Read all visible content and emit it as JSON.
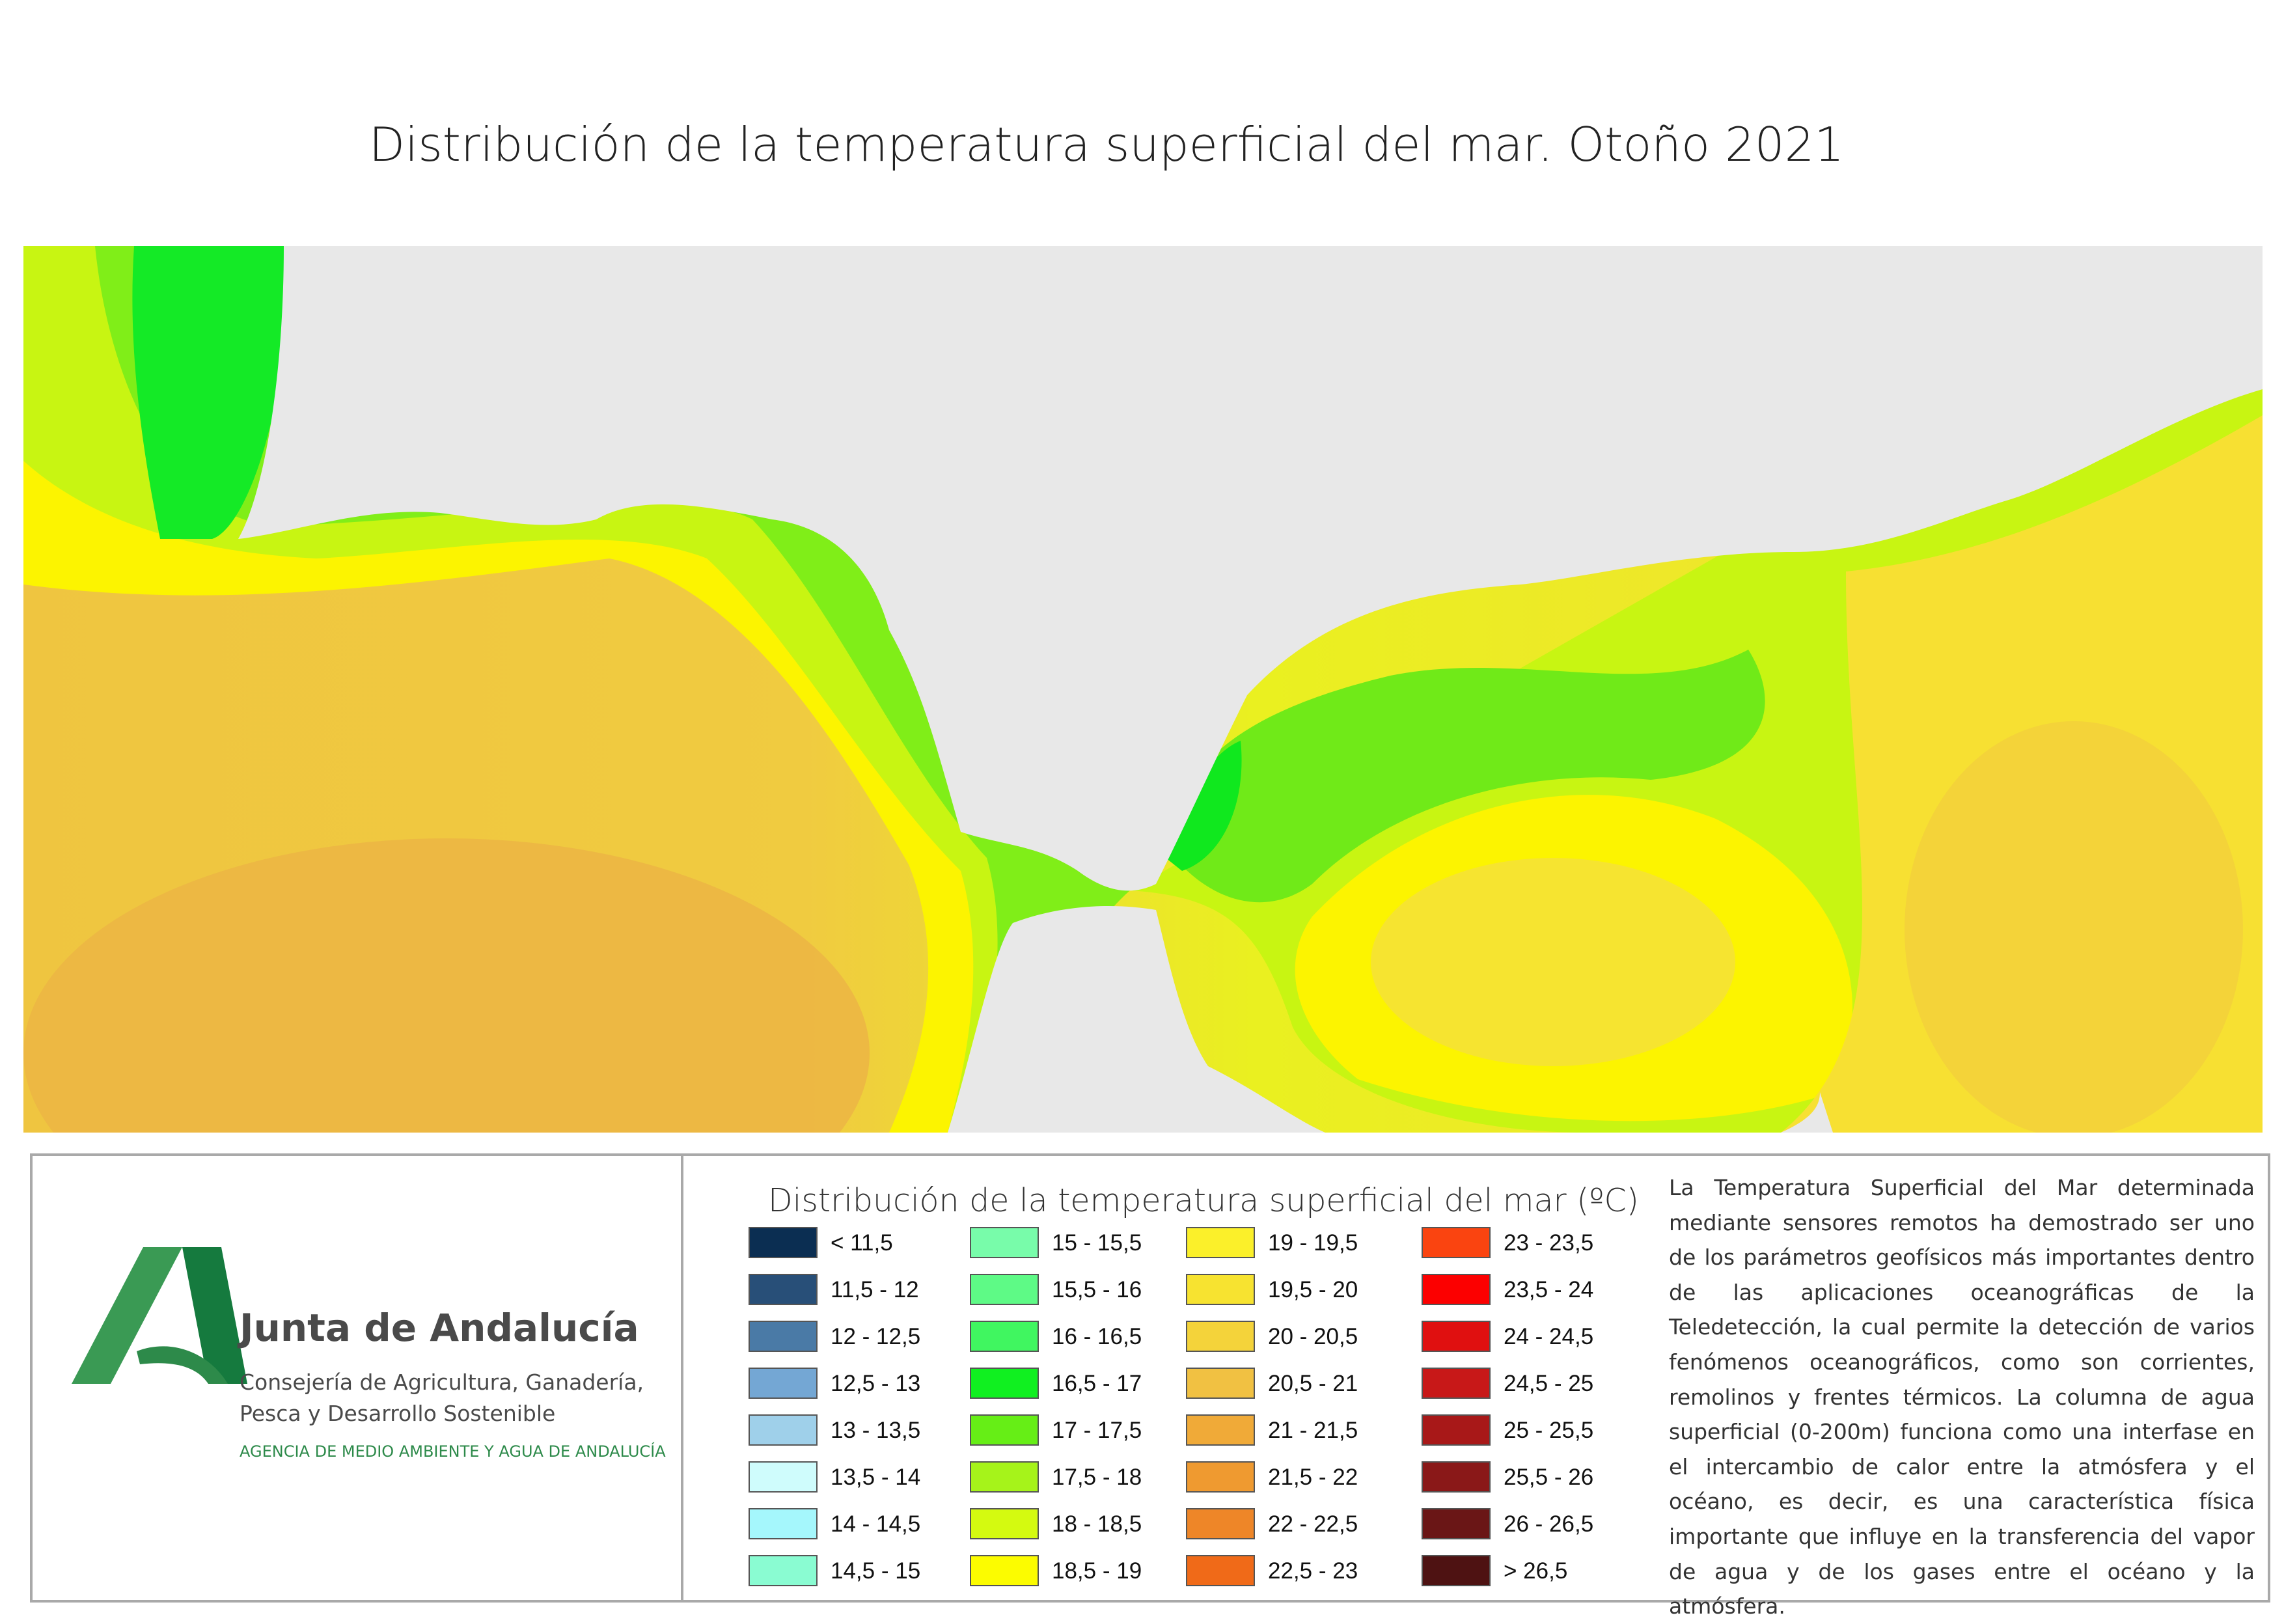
{
  "title": "Distribución de la temperatura superficial del mar. Otoño 2021",
  "colors": {
    "land": "#e8e8e8",
    "frame": "#a9a9a9"
  },
  "logo": {
    "icon": "junta-de-andalucia-logo-icon",
    "name": "Junta de Andalucía",
    "dept_line1": "Consejería de Agricultura, Ganadería,",
    "dept_line2": "Pesca y Desarrollo Sostenible",
    "agency": "AGENCIA DE MEDIO AMBIENTE Y AGUA DE ANDALUCÍA",
    "colors": {
      "light": "#3a9a54",
      "dark": "#157a3e"
    }
  },
  "legend": {
    "title": "Distribución de la temperatura superficial del mar  (ºC)",
    "items": [
      {
        "label": "< 11,5",
        "color": "#0b2e52"
      },
      {
        "label": "11,5 - 12",
        "color": "#284f78"
      },
      {
        "label": "12 - 12,5",
        "color": "#4a7aa6"
      },
      {
        "label": "12,5 - 13",
        "color": "#74a7d4"
      },
      {
        "label": "13 - 13,5",
        "color": "#9fd0ea"
      },
      {
        "label": "13,5 - 14",
        "color": "#cffcfc"
      },
      {
        "label": "14 - 14,5",
        "color": "#a5f7fc"
      },
      {
        "label": "14,5 - 15",
        "color": "#8afcd2"
      },
      {
        "label": "15 - 15,5",
        "color": "#78fcaa"
      },
      {
        "label": "15,5 - 16",
        "color": "#5efa86"
      },
      {
        "label": "16 - 16,5",
        "color": "#40f660"
      },
      {
        "label": "16,5 - 17",
        "color": "#10f020"
      },
      {
        "label": "17 - 17,5",
        "color": "#66ee16"
      },
      {
        "label": "17,5 - 18",
        "color": "#a6f31a"
      },
      {
        "label": "18 - 18,5",
        "color": "#d4fa10"
      },
      {
        "label": "18,5 - 19",
        "color": "#fcfc00"
      },
      {
        "label": "19 - 19,5",
        "color": "#fbf02a"
      },
      {
        "label": "19,5 - 20",
        "color": "#f7e330"
      },
      {
        "label": "20 - 20,5",
        "color": "#f4d33a"
      },
      {
        "label": "20,5 - 21",
        "color": "#f1c142"
      },
      {
        "label": "21 - 21,5",
        "color": "#f0aa38"
      },
      {
        "label": "21,5 - 22",
        "color": "#ef9a30"
      },
      {
        "label": "22 - 22,5",
        "color": "#ee8628"
      },
      {
        "label": "22,5 - 23",
        "color": "#f06a18"
      },
      {
        "label": "23 - 23,5",
        "color": "#fa4410"
      },
      {
        "label": "23,5 - 24",
        "color": "#fc0000"
      },
      {
        "label": "24 - 24,5",
        "color": "#e01010"
      },
      {
        "label": "24,5 - 25",
        "color": "#c81818"
      },
      {
        "label": "25 - 25,5",
        "color": "#a81818"
      },
      {
        "label": "25,5 - 26",
        "color": "#8a1818"
      },
      {
        "label": "26 - 26,5",
        "color": "#6a1616"
      },
      {
        "label": "> 26,5",
        "color": "#4e1212"
      }
    ]
  },
  "description": "La Temperatura Superficial del Mar determinada mediante sensores remotos ha demostrado ser uno de los parámetros geofísicos más importantes dentro de las aplicaciones oceanográficas de la Teledetección, la cual permite la detección de varios fenómenos oceanográficos, como son corrientes, remolinos y frentes térmicos. La columna de agua superficial (0-200m) funciona como una interfase en el intercambio de calor entre la atmósfera y el océano, es decir, es una característica física importante que influye en la transferencia del vapor de agua y de los gases entre el océano y la atmósfera."
}
